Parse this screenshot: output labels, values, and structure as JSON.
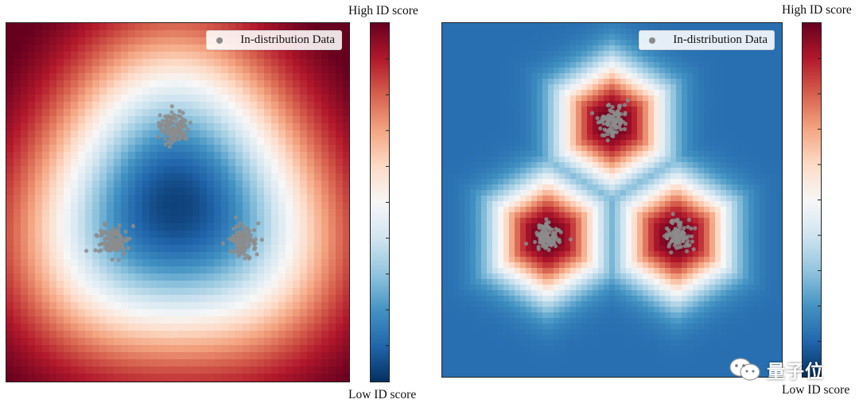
{
  "colors": {
    "colormap_RdBu_r": [
      "#053061",
      "#2166ac",
      "#4393c3",
      "#92c5de",
      "#d1e5f0",
      "#f7f7f7",
      "#fddbc7",
      "#f4a582",
      "#d6604d",
      "#b2182b",
      "#67001f"
    ],
    "data_point": "#8c8c8c"
  },
  "watermark": {
    "text": "量子位"
  },
  "chart_data": [
    {
      "type": "heatmap",
      "title": "",
      "xlabel": "",
      "ylabel": "",
      "legend": {
        "label": "In-distribution Data",
        "placement": "top-right"
      },
      "colorbar": {
        "top_label": "High ID score",
        "bottom_label": "Low ID score",
        "colormap": "RdBu_r",
        "ticks_labeled": false
      },
      "clusters": [
        {
          "center": [
            0.49,
            0.29
          ],
          "spread": 0.022,
          "points": 110
        },
        {
          "center": [
            0.31,
            0.61
          ],
          "spread": 0.022,
          "points": 110
        },
        {
          "center": [
            0.69,
            0.61
          ],
          "spread": 0.02,
          "points": 100
        }
      ],
      "score_field": "low in the interior of the cluster triangle, high toward the outer edges"
    },
    {
      "type": "heatmap",
      "title": "",
      "xlabel": "",
      "ylabel": "",
      "legend": {
        "label": "In-distribution Data",
        "placement": "top-right"
      },
      "colorbar": {
        "top_label": "High ID score",
        "bottom_label": "Low ID score",
        "colormap": "RdBu_r",
        "ticks_labeled": false
      },
      "clusters": [
        {
          "center": [
            0.5,
            0.28
          ],
          "spread": 0.02,
          "points": 100
        },
        {
          "center": [
            0.31,
            0.6
          ],
          "spread": 0.02,
          "points": 100
        },
        {
          "center": [
            0.69,
            0.6
          ],
          "spread": 0.02,
          "points": 100
        }
      ],
      "score_field": "high in hexagonal regions around each cluster, low elsewhere"
    }
  ]
}
